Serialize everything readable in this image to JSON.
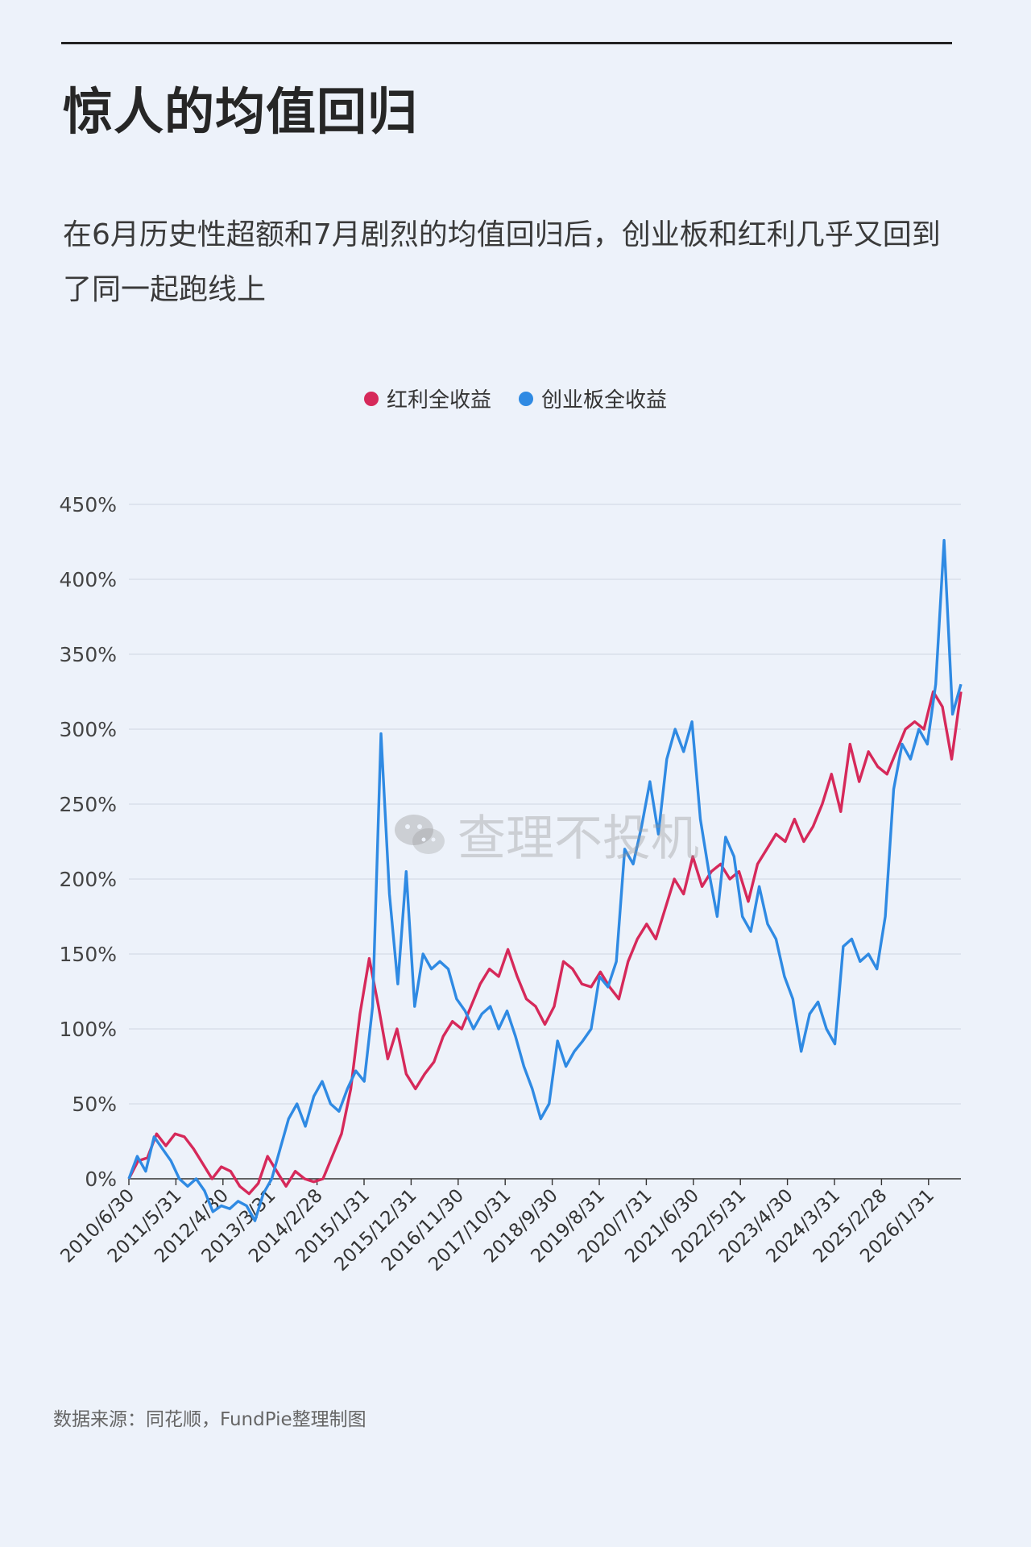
{
  "header": {
    "title": "惊人的均值回归",
    "subtitle": "在6月历史性超额和7月剧烈的均值回归后，创业板和红利几乎又回到了同一起跑线上"
  },
  "legend": [
    {
      "label": "红利全收益",
      "color": "#d6295a"
    },
    {
      "label": "创业板全收益",
      "color": "#2f8ae3"
    }
  ],
  "watermark": "查理不投机",
  "footer": {
    "source": "数据来源：同花顺，FundPie整理制图"
  },
  "chart_data": {
    "type": "line",
    "y_ticks": [
      "450%",
      "400%",
      "350%",
      "300%",
      "250%",
      "200%",
      "150%",
      "100%",
      "50%",
      "0%"
    ],
    "x_ticks": [
      "2010/6/30",
      "2011/5/31",
      "2012/4/30",
      "2013/3/31",
      "2014/2/28",
      "2015/1/31",
      "2015/12/31",
      "2016/11/30",
      "2017/10/31",
      "2018/9/30",
      "2019/8/31",
      "2020/7/31",
      "2021/6/30",
      "2022/5/31",
      "2023/4/30",
      "2024/3/31",
      "2025/2/28",
      "2026/1/31"
    ],
    "ylim": [
      -30,
      450
    ],
    "ylim_note": "percent",
    "grid": true,
    "legend_position": "top-center",
    "series": [
      {
        "name": "红利全收益",
        "color": "#d6295a",
        "values": [
          0,
          12,
          14,
          30,
          22,
          30,
          28,
          20,
          10,
          0,
          8,
          5,
          -5,
          -10,
          -3,
          15,
          5,
          -5,
          5,
          0,
          -2,
          0,
          15,
          30,
          60,
          110,
          147,
          115,
          80,
          100,
          70,
          60,
          70,
          78,
          95,
          105,
          100,
          115,
          130,
          140,
          135,
          153,
          135,
          120,
          115,
          103,
          115,
          145,
          140,
          130,
          128,
          138,
          128,
          120,
          145,
          160,
          170,
          160,
          180,
          200,
          190,
          215,
          195,
          205,
          210,
          200,
          205,
          185,
          210,
          220,
          230,
          225,
          240,
          225,
          235,
          250,
          270,
          245,
          290,
          265,
          285,
          275,
          270,
          285,
          300,
          305,
          300,
          325,
          315,
          280,
          325
        ]
      },
      {
        "name": "创业板全收益",
        "color": "#2f8ae3",
        "values": [
          0,
          15,
          5,
          28,
          20,
          12,
          0,
          -5,
          0,
          -8,
          -22,
          -18,
          -20,
          -15,
          -18,
          -28,
          -10,
          0,
          20,
          40,
          50,
          35,
          55,
          65,
          50,
          45,
          60,
          72,
          65,
          115,
          297,
          190,
          130,
          205,
          115,
          150,
          140,
          145,
          140,
          120,
          112,
          100,
          110,
          115,
          100,
          112,
          95,
          75,
          60,
          40,
          50,
          92,
          75,
          85,
          92,
          100,
          135,
          128,
          145,
          220,
          210,
          235,
          265,
          230,
          280,
          300,
          285,
          305,
          240,
          205,
          175,
          228,
          215,
          175,
          165,
          195,
          170,
          160,
          135,
          120,
          85,
          110,
          118,
          100,
          90,
          155,
          160,
          145,
          150,
          140,
          175,
          260,
          290,
          280,
          300,
          290,
          330,
          426,
          310,
          330
        ]
      }
    ]
  }
}
